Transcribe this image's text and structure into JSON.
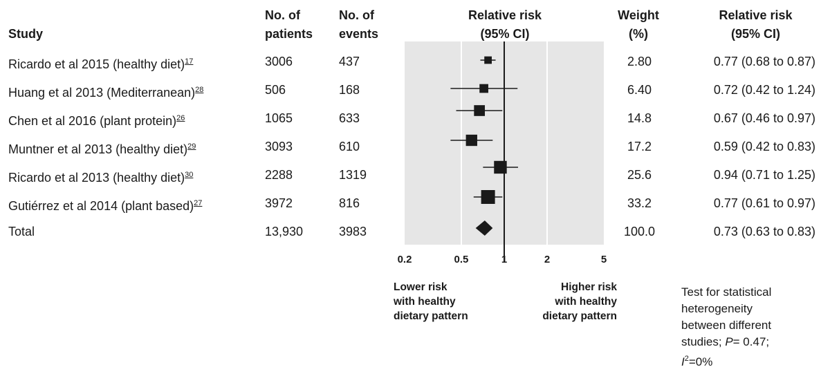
{
  "headers": {
    "study": "Study",
    "patients": [
      "No. of",
      "patients"
    ],
    "events": [
      "No. of",
      "events"
    ],
    "plot": [
      "Relative risk",
      "(95% CI)"
    ],
    "weight": [
      "Weight",
      "(%)"
    ],
    "rr": [
      "Relative risk",
      "(95% CI)"
    ]
  },
  "rows": [
    {
      "study": "Ricardo et al 2015 (healthy diet)",
      "ref": "17",
      "patients": "3006",
      "events": "437",
      "weight": "2.80",
      "rr_text": "0.77 (0.68 to 0.87)"
    },
    {
      "study": "Huang et al 2013 (Mediterranean)",
      "ref": "28",
      "patients": "506",
      "events": "168",
      "weight": "6.40",
      "rr_text": "0.72 (0.42 to 1.24)"
    },
    {
      "study": "Chen et al 2016 (plant protein)",
      "ref": "26",
      "patients": "1065",
      "events": "633",
      "weight": "14.8",
      "rr_text": "0.67 (0.46 to 0.97)"
    },
    {
      "study": "Muntner et al 2013 (healthy diet)",
      "ref": "29",
      "patients": "3093",
      "events": "610",
      "weight": "17.2",
      "rr_text": "0.59 (0.42 to 0.83)"
    },
    {
      "study": "Ricardo et al 2013 (healthy diet)",
      "ref": "30",
      "patients": "2288",
      "events": "1319",
      "weight": "25.6",
      "rr_text": "0.94 (0.71 to 1.25)"
    },
    {
      "study": "Gutiérrez et al 2014 (plant based)",
      "ref": "27",
      "patients": "3972",
      "events": "816",
      "weight": "33.2",
      "rr_text": "0.77 (0.61 to 0.97)"
    }
  ],
  "total": {
    "study": "Total",
    "patients": "13,930",
    "events": "3983",
    "weight": "100.0",
    "rr_text": "0.73 (0.63 to 0.83)"
  },
  "chart_data": {
    "type": "forest",
    "scale": "log",
    "xlim": [
      0.2,
      5
    ],
    "ticks": [
      0.2,
      0.5,
      1,
      2,
      5
    ],
    "tick_labels": [
      "0.2",
      "0.5",
      "1",
      "2",
      "5"
    ],
    "gridlines": [
      0.5,
      2
    ],
    "reference_line": 1,
    "studies": [
      {
        "rr": 0.77,
        "lo": 0.68,
        "hi": 0.87,
        "weight": 2.8
      },
      {
        "rr": 0.72,
        "lo": 0.42,
        "hi": 1.24,
        "weight": 6.4
      },
      {
        "rr": 0.67,
        "lo": 0.46,
        "hi": 0.97,
        "weight": 14.8
      },
      {
        "rr": 0.59,
        "lo": 0.42,
        "hi": 0.83,
        "weight": 17.2
      },
      {
        "rr": 0.94,
        "lo": 0.71,
        "hi": 1.25,
        "weight": 25.6
      },
      {
        "rr": 0.77,
        "lo": 0.61,
        "hi": 0.97,
        "weight": 33.2
      }
    ],
    "pooled": {
      "rr": 0.73,
      "lo": 0.63,
      "hi": 0.83
    },
    "lower_label": [
      "Lower risk",
      "with healthy",
      "dietary pattern"
    ],
    "higher_label": [
      "Higher risk",
      "with healthy",
      "dietary pattern"
    ],
    "colors": {
      "panel": "#e6e6e6",
      "grid": "#ffffff",
      "marks": "#1a1a1a"
    }
  },
  "footnote": [
    "Test for statistical",
    "heterogeneity",
    "between different",
    "studies; ",
    "P",
    "= 0.47;",
    "I",
    "2",
    "=0%"
  ]
}
